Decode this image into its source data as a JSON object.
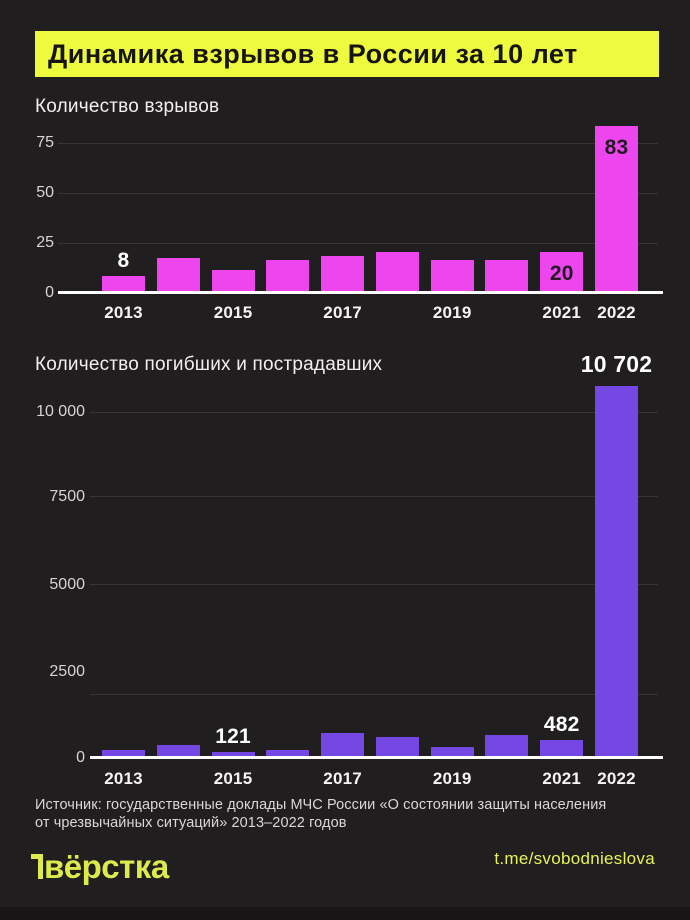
{
  "title": {
    "text": "Динамика взрывов в России за 10 лет"
  },
  "theme": {
    "background": "#201e1e",
    "title_bg": "#eefa3d",
    "title_color": "#171414",
    "grid_color": "#383434",
    "axis_color": "#ffffff",
    "tick_color": "#d6d4d4",
    "label_light": "#ffffff",
    "label_dark": "#221c22",
    "source_color": "#d9d7d7",
    "logo_color": "#dcea4d",
    "link_color": "#e8f259"
  },
  "chart_data": [
    {
      "id": "explosions",
      "type": "bar",
      "title": "Количество взрывов",
      "categories": [
        "2013",
        "2014",
        "2015",
        "2016",
        "2017",
        "2018",
        "2019",
        "2020",
        "2021",
        "2022"
      ],
      "values": [
        8,
        17,
        11,
        16,
        18,
        20,
        16,
        16,
        20,
        83
      ],
      "bar_color": "#ee46ee",
      "ylim": [
        0,
        85
      ],
      "grid": true,
      "legend_position": "none",
      "yticks": [
        {
          "value": 0,
          "label": "0"
        },
        {
          "value": 25,
          "label": "25"
        },
        {
          "value": 50,
          "label": "50"
        },
        {
          "value": 75,
          "label": "75"
        }
      ],
      "x_tick_labels": [
        "2013",
        "2015",
        "2017",
        "2019",
        "2021",
        "2022"
      ],
      "data_labels": [
        {
          "category": "2013",
          "text": "8",
          "placement": "above",
          "color": "light"
        },
        {
          "category": "2021",
          "text": "20",
          "placement": "inside",
          "color": "dark"
        },
        {
          "category": "2022",
          "text": "83",
          "placement": "inside",
          "color": "dark"
        }
      ]
    },
    {
      "id": "casualties",
      "type": "bar",
      "title": "Количество погибших и пострадавших",
      "categories": [
        "2013",
        "2014",
        "2015",
        "2016",
        "2017",
        "2018",
        "2019",
        "2020",
        "2021",
        "2022"
      ],
      "values": [
        200,
        320,
        121,
        200,
        690,
        550,
        260,
        610,
        482,
        10702
      ],
      "bar_color": "#7547e3",
      "ylim": [
        0,
        10800
      ],
      "grid": true,
      "legend_position": "none",
      "yticks": [
        {
          "value": 0,
          "label": "0"
        },
        {
          "value": 2500,
          "label": "2500"
        },
        {
          "value": 5000,
          "label": "5000"
        },
        {
          "value": 7500,
          "label": "7500"
        },
        {
          "value": 10000,
          "label": "10 000"
        }
      ],
      "x_tick_labels": [
        "2013",
        "2015",
        "2017",
        "2019",
        "2021",
        "2022"
      ],
      "data_labels": [
        {
          "category": "2015",
          "text": "121",
          "placement": "above",
          "color": "light"
        },
        {
          "category": "2021",
          "text": "482",
          "placement": "above",
          "color": "light"
        },
        {
          "category": "2022",
          "text": "10 702",
          "placement": "above",
          "color": "light",
          "size": "large"
        }
      ]
    }
  ],
  "footer": {
    "source_line1": "Источник: государственные доклады МЧС России «О состоянии защиты населения",
    "source_line2": "от чрезвычайных ситуаций» 2013–2022 годов",
    "logo_text": "вёрстка",
    "link_text": "t.me/svobodnieslova"
  }
}
